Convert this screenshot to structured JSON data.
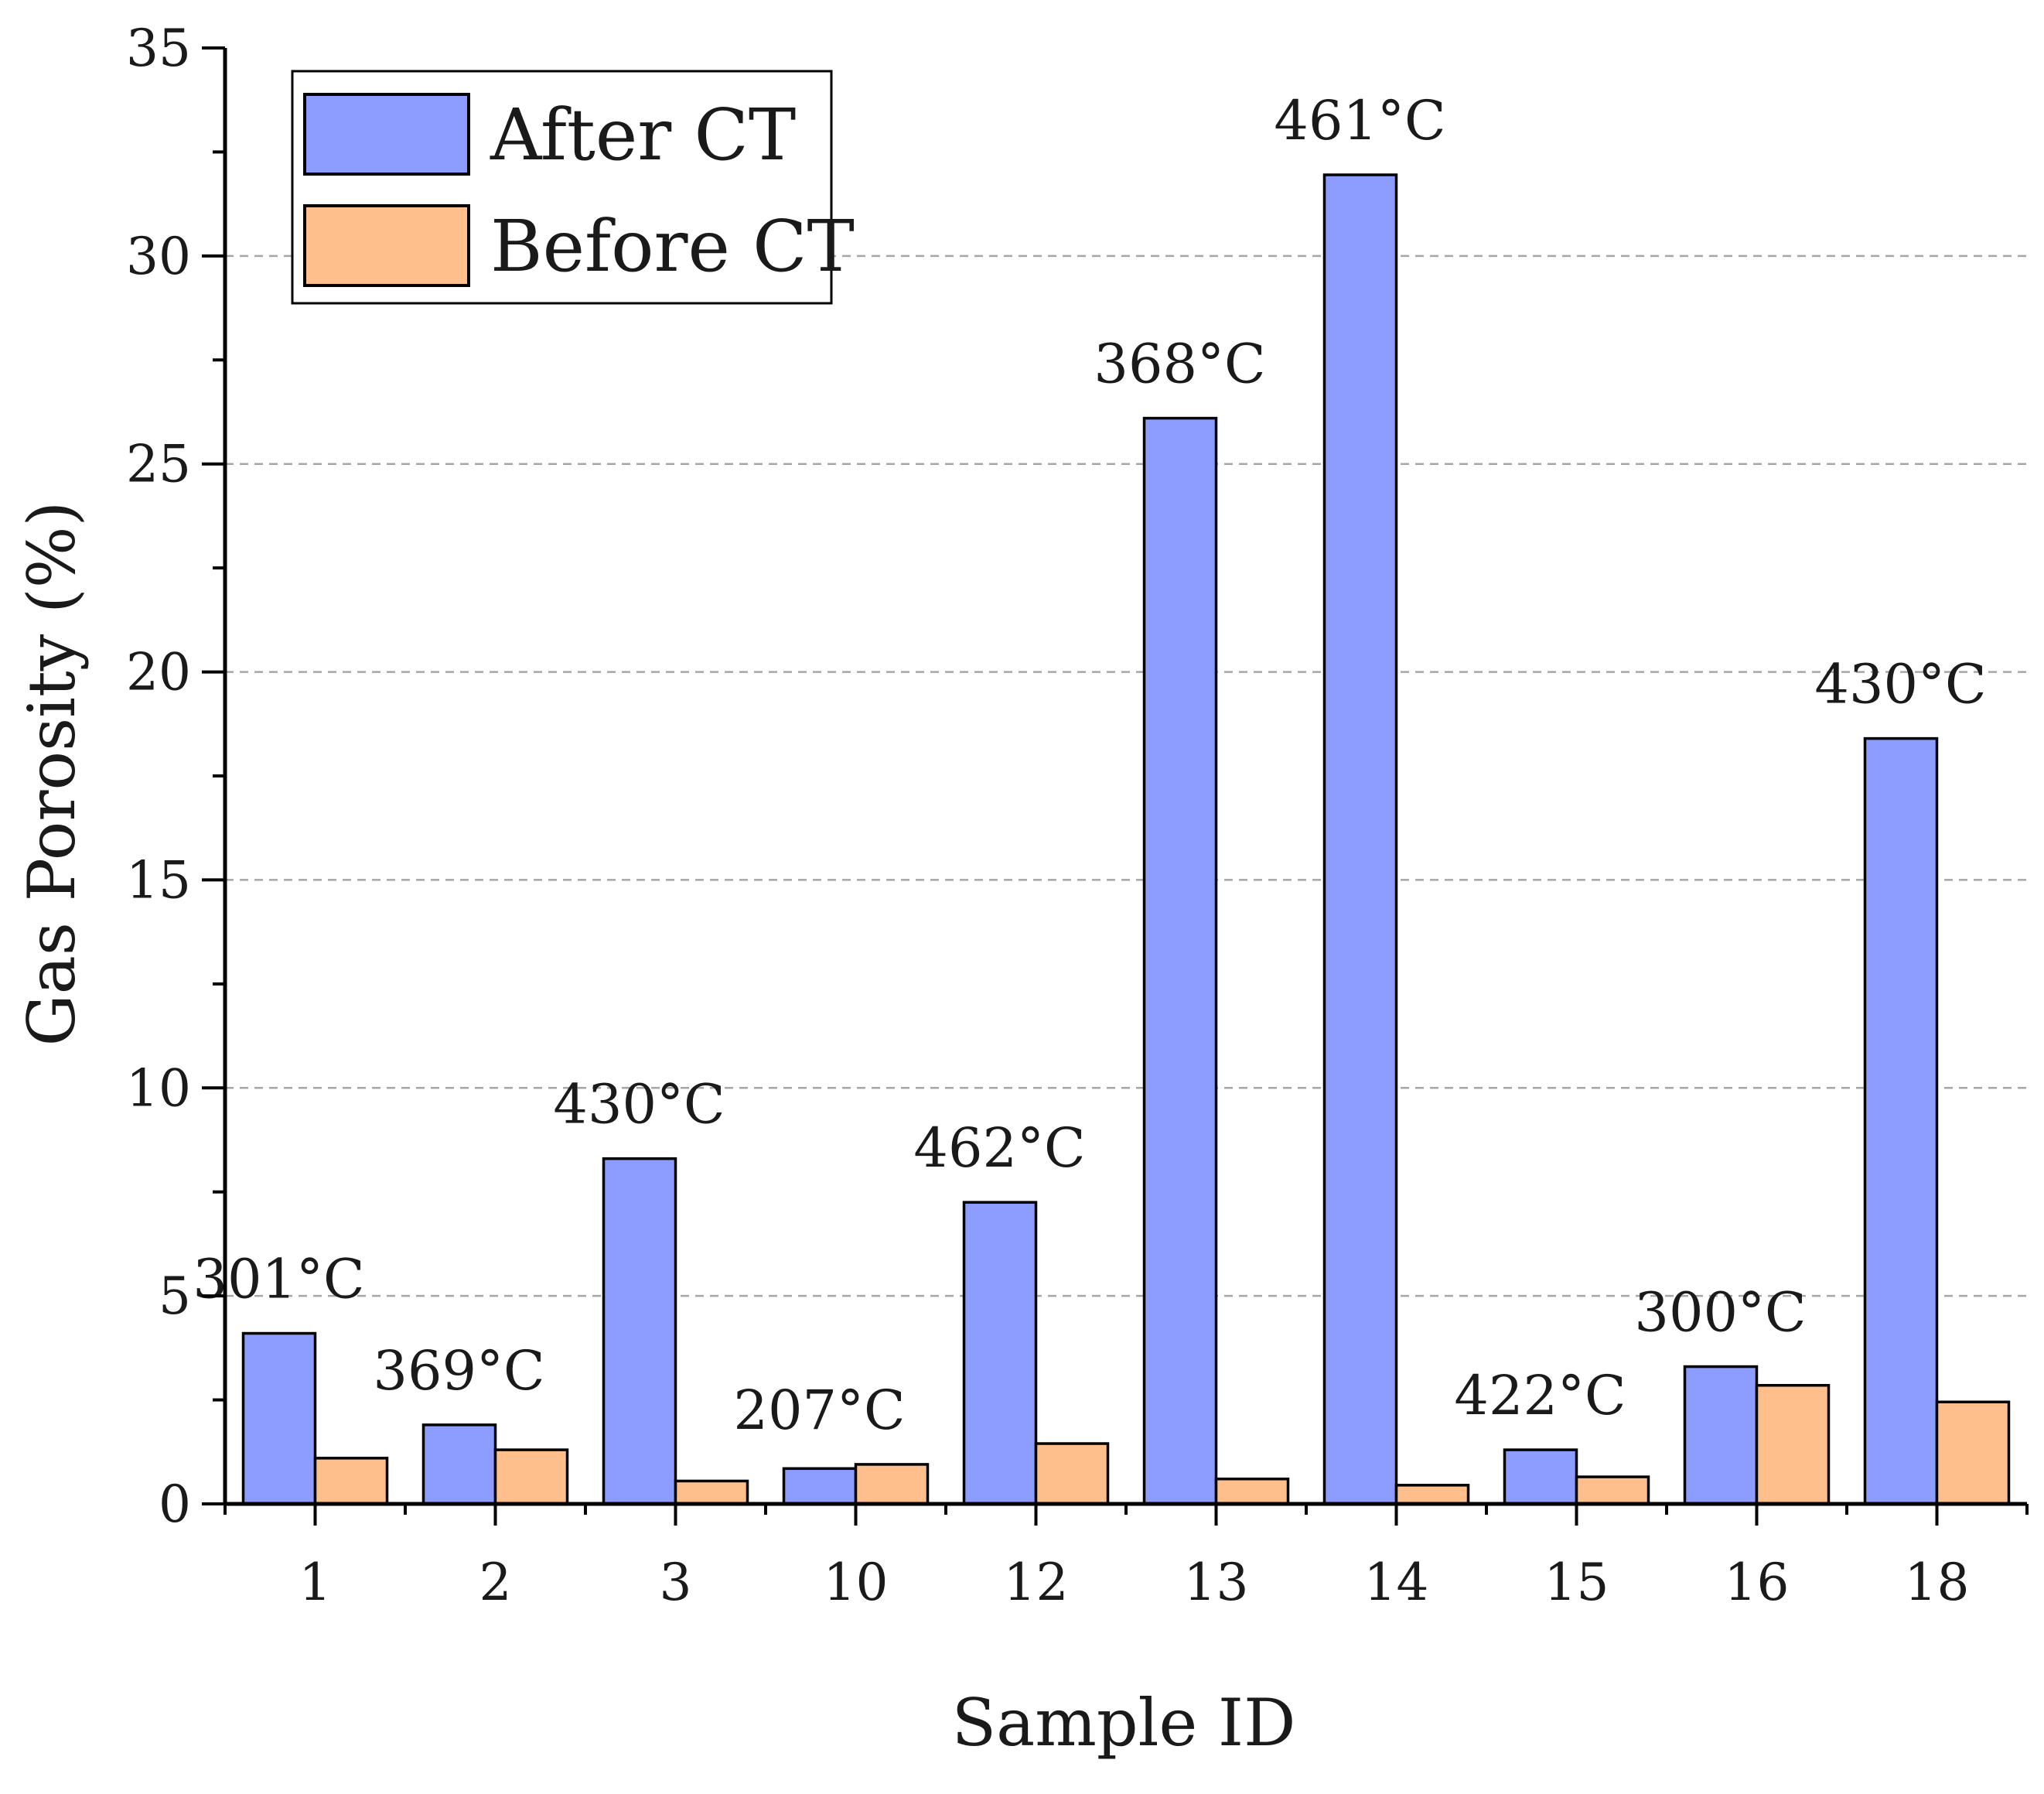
{
  "chart_data": {
    "type": "bar",
    "title": "",
    "xlabel": "Sample ID",
    "ylabel": "Gas Porosity (%)",
    "ylim": [
      0,
      35
    ],
    "yticks": [
      0,
      5,
      10,
      15,
      20,
      25,
      30,
      35
    ],
    "ytick_labels": [
      "0",
      "5",
      "10",
      "15",
      "20",
      "25",
      "30",
      "35"
    ],
    "grid": "horizontal dashed",
    "legend_position": "top-left",
    "categories": [
      "1",
      "2",
      "3",
      "10",
      "12",
      "13",
      "14",
      "15",
      "16",
      "18"
    ],
    "series": [
      {
        "name": "After CT",
        "color": "#8c9dff",
        "values": [
          4.1,
          1.9,
          8.3,
          0.85,
          7.25,
          26.1,
          31.95,
          1.3,
          3.3,
          18.4
        ]
      },
      {
        "name": "Before CT",
        "color": "#ffbf8c",
        "values": [
          1.1,
          1.3,
          0.55,
          0.95,
          1.45,
          0.6,
          0.45,
          0.65,
          2.85,
          2.45
        ]
      }
    ],
    "annotations": [
      "301°C",
      "369°C",
      "430°C",
      "207°C",
      "462°C",
      "368°C",
      "461°C",
      "422°C",
      "300°C",
      "430°C"
    ],
    "colors": {
      "axis": "#000000",
      "grid": "#a6a6a6",
      "bar_edge": "#000000"
    }
  }
}
